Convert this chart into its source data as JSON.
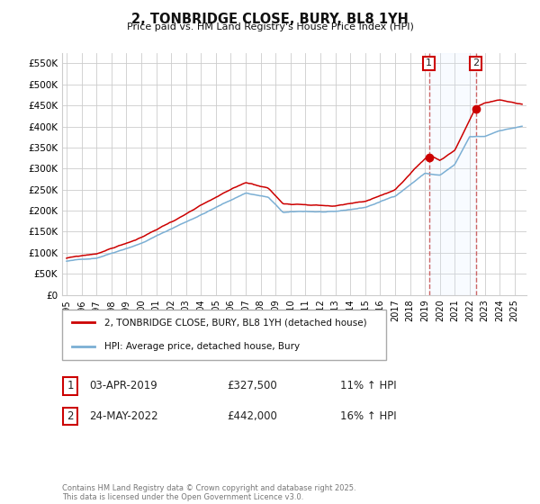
{
  "title": "2, TONBRIDGE CLOSE, BURY, BL8 1YH",
  "subtitle": "Price paid vs. HM Land Registry's House Price Index (HPI)",
  "ylabel_ticks": [
    "£0",
    "£50K",
    "£100K",
    "£150K",
    "£200K",
    "£250K",
    "£300K",
    "£350K",
    "£400K",
    "£450K",
    "£500K",
    "£550K"
  ],
  "ytick_values": [
    0,
    50000,
    100000,
    150000,
    200000,
    250000,
    300000,
    350000,
    400000,
    450000,
    500000,
    550000
  ],
  "ylim": [
    0,
    575000
  ],
  "xlim_start": 1994.7,
  "xlim_end": 2025.8,
  "xticks": [
    1995,
    1996,
    1997,
    1998,
    1999,
    2000,
    2001,
    2002,
    2003,
    2004,
    2005,
    2006,
    2007,
    2008,
    2009,
    2010,
    2011,
    2012,
    2013,
    2014,
    2015,
    2016,
    2017,
    2018,
    2019,
    2020,
    2021,
    2022,
    2023,
    2024,
    2025
  ],
  "sale1_x": 2019.27,
  "sale1_y": 327500,
  "sale1_label": "1",
  "sale1_date": "03-APR-2019",
  "sale1_price": "£327,500",
  "sale1_hpi": "11% ↑ HPI",
  "sale2_x": 2022.4,
  "sale2_y": 442000,
  "sale2_label": "2",
  "sale2_date": "24-MAY-2022",
  "sale2_price": "£442,000",
  "sale2_hpi": "16% ↑ HPI",
  "line_color_house": "#cc0000",
  "line_color_hpi": "#7bafd4",
  "legend_label_house": "2, TONBRIDGE CLOSE, BURY, BL8 1YH (detached house)",
  "legend_label_hpi": "HPI: Average price, detached house, Bury",
  "footnote": "Contains HM Land Registry data © Crown copyright and database right 2025.\nThis data is licensed under the Open Government Licence v3.0.",
  "background_color": "#ffffff",
  "plot_bg_color": "#ffffff",
  "grid_color": "#cccccc",
  "dashed_line_color": "#cc6666",
  "shade_color": "#ddeeff"
}
